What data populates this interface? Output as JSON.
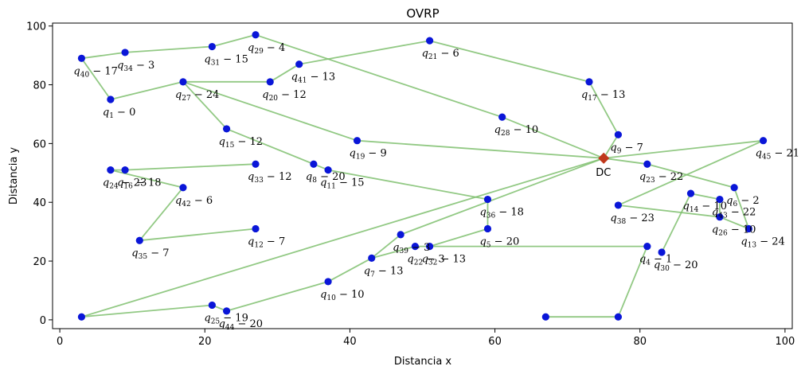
{
  "chart_data": {
    "type": "scatter",
    "title": "OVRP",
    "xlabel": "Distancia x",
    "ylabel": "Distancia y",
    "xlim": [
      -1,
      101
    ],
    "ylim": [
      -3,
      101
    ],
    "xticks": [
      0,
      20,
      40,
      60,
      80,
      100
    ],
    "yticks": [
      0,
      20,
      40,
      60,
      80,
      100
    ],
    "grid": false,
    "colors": {
      "route": "#7fbf6f",
      "point": "#0a16d8",
      "depot": "#c0381c"
    },
    "depot": {
      "x": 75,
      "y": 55,
      "label": "DC"
    },
    "points": [
      {
        "id": "1",
        "name": "q1",
        "demand": "0",
        "x": 7,
        "y": 75
      },
      {
        "id": "6",
        "name": "q6",
        "demand": "2",
        "x": 93,
        "y": 45
      },
      {
        "id": "9",
        "name": "q9",
        "demand": "7",
        "x": 77,
        "y": 63
      },
      {
        "id": "10",
        "name": "q10",
        "demand": "10",
        "x": 37,
        "y": 13
      },
      {
        "id": "4",
        "name": "q4",
        "demand": "1",
        "x": 81,
        "y": 25
      },
      {
        "id": "5",
        "name": "q5",
        "demand": "20",
        "x": 59,
        "y": 31
      },
      {
        "id": "7",
        "name": "q7",
        "demand": "13",
        "x": 43,
        "y": 21
      },
      {
        "id": "8",
        "name": "q8",
        "demand": "20",
        "x": 35,
        "y": 53
      },
      {
        "id": "11",
        "name": "q11",
        "demand": "15",
        "x": 37,
        "y": 51
      },
      {
        "id": "12",
        "name": "q12",
        "demand": "7",
        "x": 27,
        "y": 31
      },
      {
        "id": "13",
        "name": "q13",
        "demand": "24",
        "x": 95,
        "y": 31
      },
      {
        "id": "14",
        "name": "q14",
        "demand": "10",
        "x": 87,
        "y": 43
      },
      {
        "id": "15",
        "name": "q15",
        "demand": "12",
        "x": 23,
        "y": 65
      },
      {
        "id": "16",
        "name": "q16",
        "demand": "18",
        "x": 9,
        "y": 51
      },
      {
        "id": "17",
        "name": "q17",
        "demand": "13",
        "x": 73,
        "y": 81
      },
      {
        "id": "19",
        "name": "q19",
        "demand": "9",
        "x": 41,
        "y": 61
      },
      {
        "id": "20",
        "name": "q20",
        "demand": "12",
        "x": 29,
        "y": 81
      },
      {
        "id": "21",
        "name": "q21",
        "demand": "6",
        "x": 51,
        "y": 95
      },
      {
        "id": "22",
        "name": "q22",
        "demand": "3",
        "x": 49,
        "y": 25
      },
      {
        "id": "23",
        "name": "q23",
        "demand": "22",
        "x": 81,
        "y": 53
      },
      {
        "id": "24",
        "name": "q24",
        "demand": "23",
        "x": 7,
        "y": 51
      },
      {
        "id": "25",
        "name": "q25",
        "demand": "19",
        "x": 21,
        "y": 5
      },
      {
        "id": "26",
        "name": "q26",
        "demand": "10",
        "x": 91,
        "y": 35
      },
      {
        "id": "27",
        "name": "q27",
        "demand": "24",
        "x": 17,
        "y": 81
      },
      {
        "id": "28",
        "name": "q28",
        "demand": "10",
        "x": 61,
        "y": 69
      },
      {
        "id": "29",
        "name": "q29",
        "demand": "4",
        "x": 27,
        "y": 97
      },
      {
        "id": "30",
        "name": "q30",
        "demand": "20",
        "x": 83,
        "y": 23
      },
      {
        "id": "31",
        "name": "q31",
        "demand": "15",
        "x": 21,
        "y": 93
      },
      {
        "id": "32",
        "name": "q32",
        "demand": "13",
        "x": 51,
        "y": 25
      },
      {
        "id": "33",
        "name": "q33",
        "demand": "12",
        "x": 27,
        "y": 53
      },
      {
        "id": "34",
        "name": "q34",
        "demand": "3",
        "x": 9,
        "y": 91
      },
      {
        "id": "35",
        "name": "q35",
        "demand": "7",
        "x": 11,
        "y": 27
      },
      {
        "id": "36",
        "name": "q36",
        "demand": "18",
        "x": 59,
        "y": 41
      },
      {
        "id": "38",
        "name": "q38",
        "demand": "23",
        "x": 77,
        "y": 39
      },
      {
        "id": "39",
        "name": "q39",
        "demand": "3",
        "x": 47,
        "y": 29
      },
      {
        "id": "40",
        "name": "q40",
        "demand": "17",
        "x": 3,
        "y": 89
      },
      {
        "id": "41",
        "name": "q41",
        "demand": "13",
        "x": 33,
        "y": 87
      },
      {
        "id": "42",
        "name": "q42",
        "demand": "6",
        "x": 17,
        "y": 45
      },
      {
        "id": "43",
        "name": "q43",
        "demand": "22",
        "x": 91,
        "y": 41
      },
      {
        "id": "44",
        "name": "q44",
        "demand": "20",
        "x": 23,
        "y": 3
      },
      {
        "id": "45",
        "name": "q45",
        "demand": "21",
        "x": 97,
        "y": 61
      },
      {
        "id": "u1",
        "name": "",
        "demand": "",
        "x": 3,
        "y": 1
      },
      {
        "id": "u2",
        "name": "",
        "demand": "",
        "x": 67,
        "y": 1
      },
      {
        "id": "u3",
        "name": "",
        "demand": "",
        "x": 77,
        "y": 1
      }
    ],
    "routes": [
      [
        "DC",
        "9",
        "17",
        "21",
        "41",
        "20",
        "27",
        "15",
        "8",
        "11",
        "36",
        "5",
        "32",
        "4",
        "u3",
        "u2"
      ],
      [
        "DC",
        "28",
        "29",
        "31",
        "34",
        "40",
        "1",
        "27"
      ],
      [
        "DC",
        "19",
        "27"
      ],
      [
        "DC",
        "23",
        "6",
        "13",
        "26",
        "43",
        "14",
        "30"
      ],
      [
        "DC",
        "45",
        "38",
        "26"
      ],
      [
        "DC",
        "39",
        "7",
        "22",
        "32"
      ],
      [
        "DC",
        "u1",
        "25",
        "44",
        "10",
        "7"
      ],
      [
        "33",
        "16",
        "24",
        "42",
        "35",
        "12"
      ]
    ]
  }
}
